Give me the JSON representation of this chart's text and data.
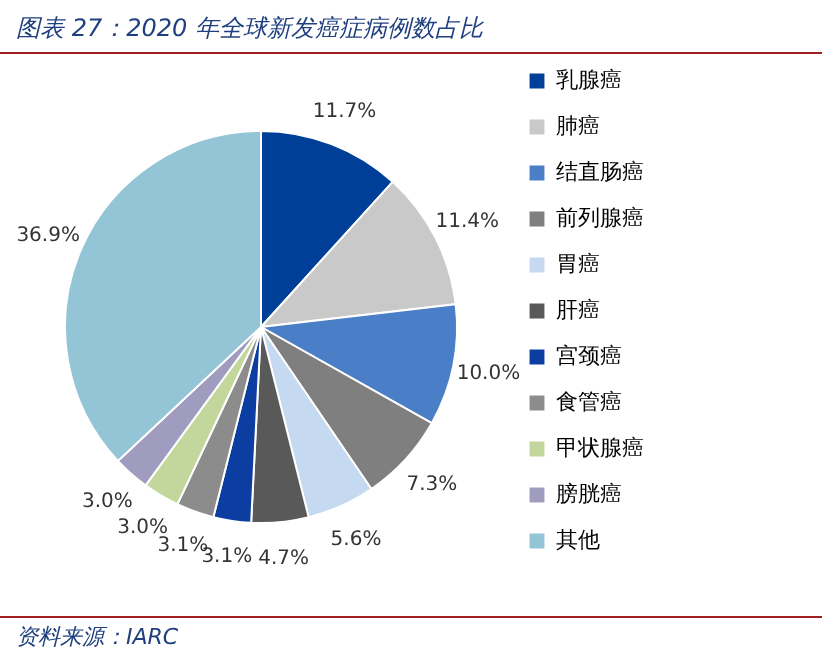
{
  "chart_data": {
    "type": "pie",
    "title": "图表 27：2020 年全球新发癌症病例数占比",
    "categories": [
      "乳腺癌",
      "肺癌",
      "结直肠癌",
      "前列腺癌",
      "胃癌",
      "肝癌",
      "宫颈癌",
      "食管癌",
      "甲状腺癌",
      "膀胱癌",
      "其他"
    ],
    "values": [
      11.7,
      11.4,
      10.0,
      7.3,
      5.6,
      4.7,
      3.1,
      3.1,
      3.0,
      3.0,
      36.9
    ],
    "value_labels": [
      "11.7%",
      "11.4%",
      "10.0%",
      "7.3%",
      "5.6%",
      "4.7%",
      "3.1%",
      "3.1%",
      "3.0%",
      "3.0%",
      "36.9%"
    ],
    "colors": [
      "#003f97",
      "#c9c9c9",
      "#4a7ec7",
      "#7f7f7f",
      "#c5d9f0",
      "#595959",
      "#0b3ea0",
      "#8c8c8c",
      "#c3d69b",
      "#a09cbf",
      "#93c5d6"
    ],
    "legend": "right",
    "annotations": [
      "资料来源：IARC"
    ]
  }
}
